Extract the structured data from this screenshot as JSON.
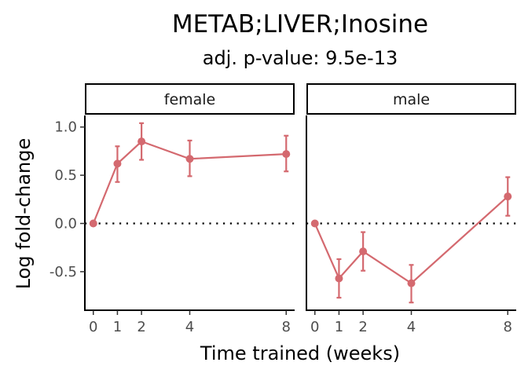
{
  "chart_data": {
    "type": "line",
    "title": "METAB;LIVER;Inosine",
    "subtitle": "adj. p-value: 9.5e-13",
    "xlabel": "Time trained (weeks)",
    "ylabel": "Log fold-change",
    "x_ticks": [
      0,
      1,
      2,
      4,
      8
    ],
    "y_ticks": [
      -0.5,
      0.0,
      0.5,
      1.0
    ],
    "y_tick_labels": [
      "-0.5",
      "0.0",
      "0.5",
      "1.0"
    ],
    "xlim": [
      -0.35,
      8.35
    ],
    "ylim": [
      -0.9,
      1.12
    ],
    "reference_line": 0,
    "color": "#d4696f",
    "grid": false,
    "panels": [
      {
        "name": "female",
        "x": [
          0,
          1,
          2,
          4,
          8
        ],
        "y": [
          0.0,
          0.62,
          0.85,
          0.67,
          0.72
        ],
        "err_low": [
          0.0,
          0.43,
          0.66,
          0.49,
          0.54
        ],
        "err_high": [
          0.0,
          0.8,
          1.04,
          0.86,
          0.91
        ]
      },
      {
        "name": "male",
        "x": [
          0,
          1,
          2,
          4,
          8
        ],
        "y": [
          0.0,
          -0.57,
          -0.29,
          -0.62,
          0.28
        ],
        "err_low": [
          0.0,
          -0.77,
          -0.49,
          -0.82,
          0.08
        ],
        "err_high": [
          0.0,
          -0.37,
          -0.09,
          -0.43,
          0.48
        ]
      }
    ]
  }
}
